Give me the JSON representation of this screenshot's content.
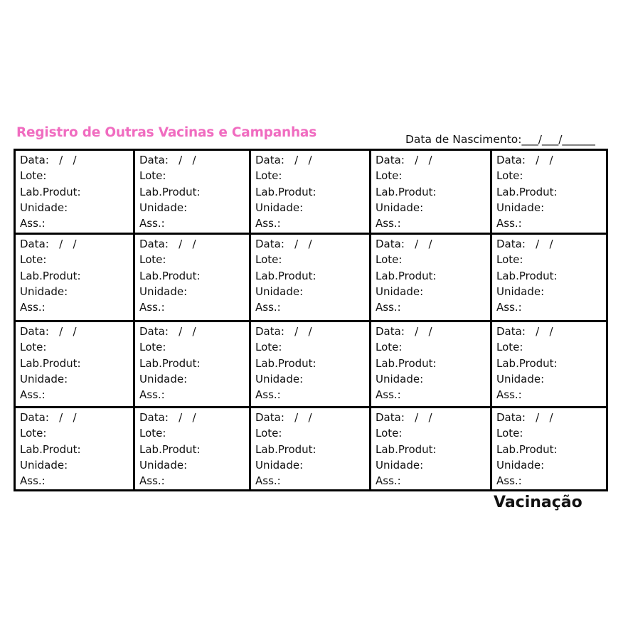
{
  "header": {
    "title": "Registro de Outras Vacinas e Campanhas",
    "birth_date_label": "Data de Nascimento:___/___/______"
  },
  "cell_fields": {
    "data": "Data:   /   /",
    "lote": "Lote:",
    "lab": "Lab.Produt:",
    "unidade": "Unidade:",
    "ass": "Ass.:"
  },
  "grid": {
    "rows": 4,
    "columns": 5
  },
  "colors": {
    "title": "#f06cc0",
    "border": "#000000"
  },
  "footer": {
    "label": "Vacinação"
  }
}
